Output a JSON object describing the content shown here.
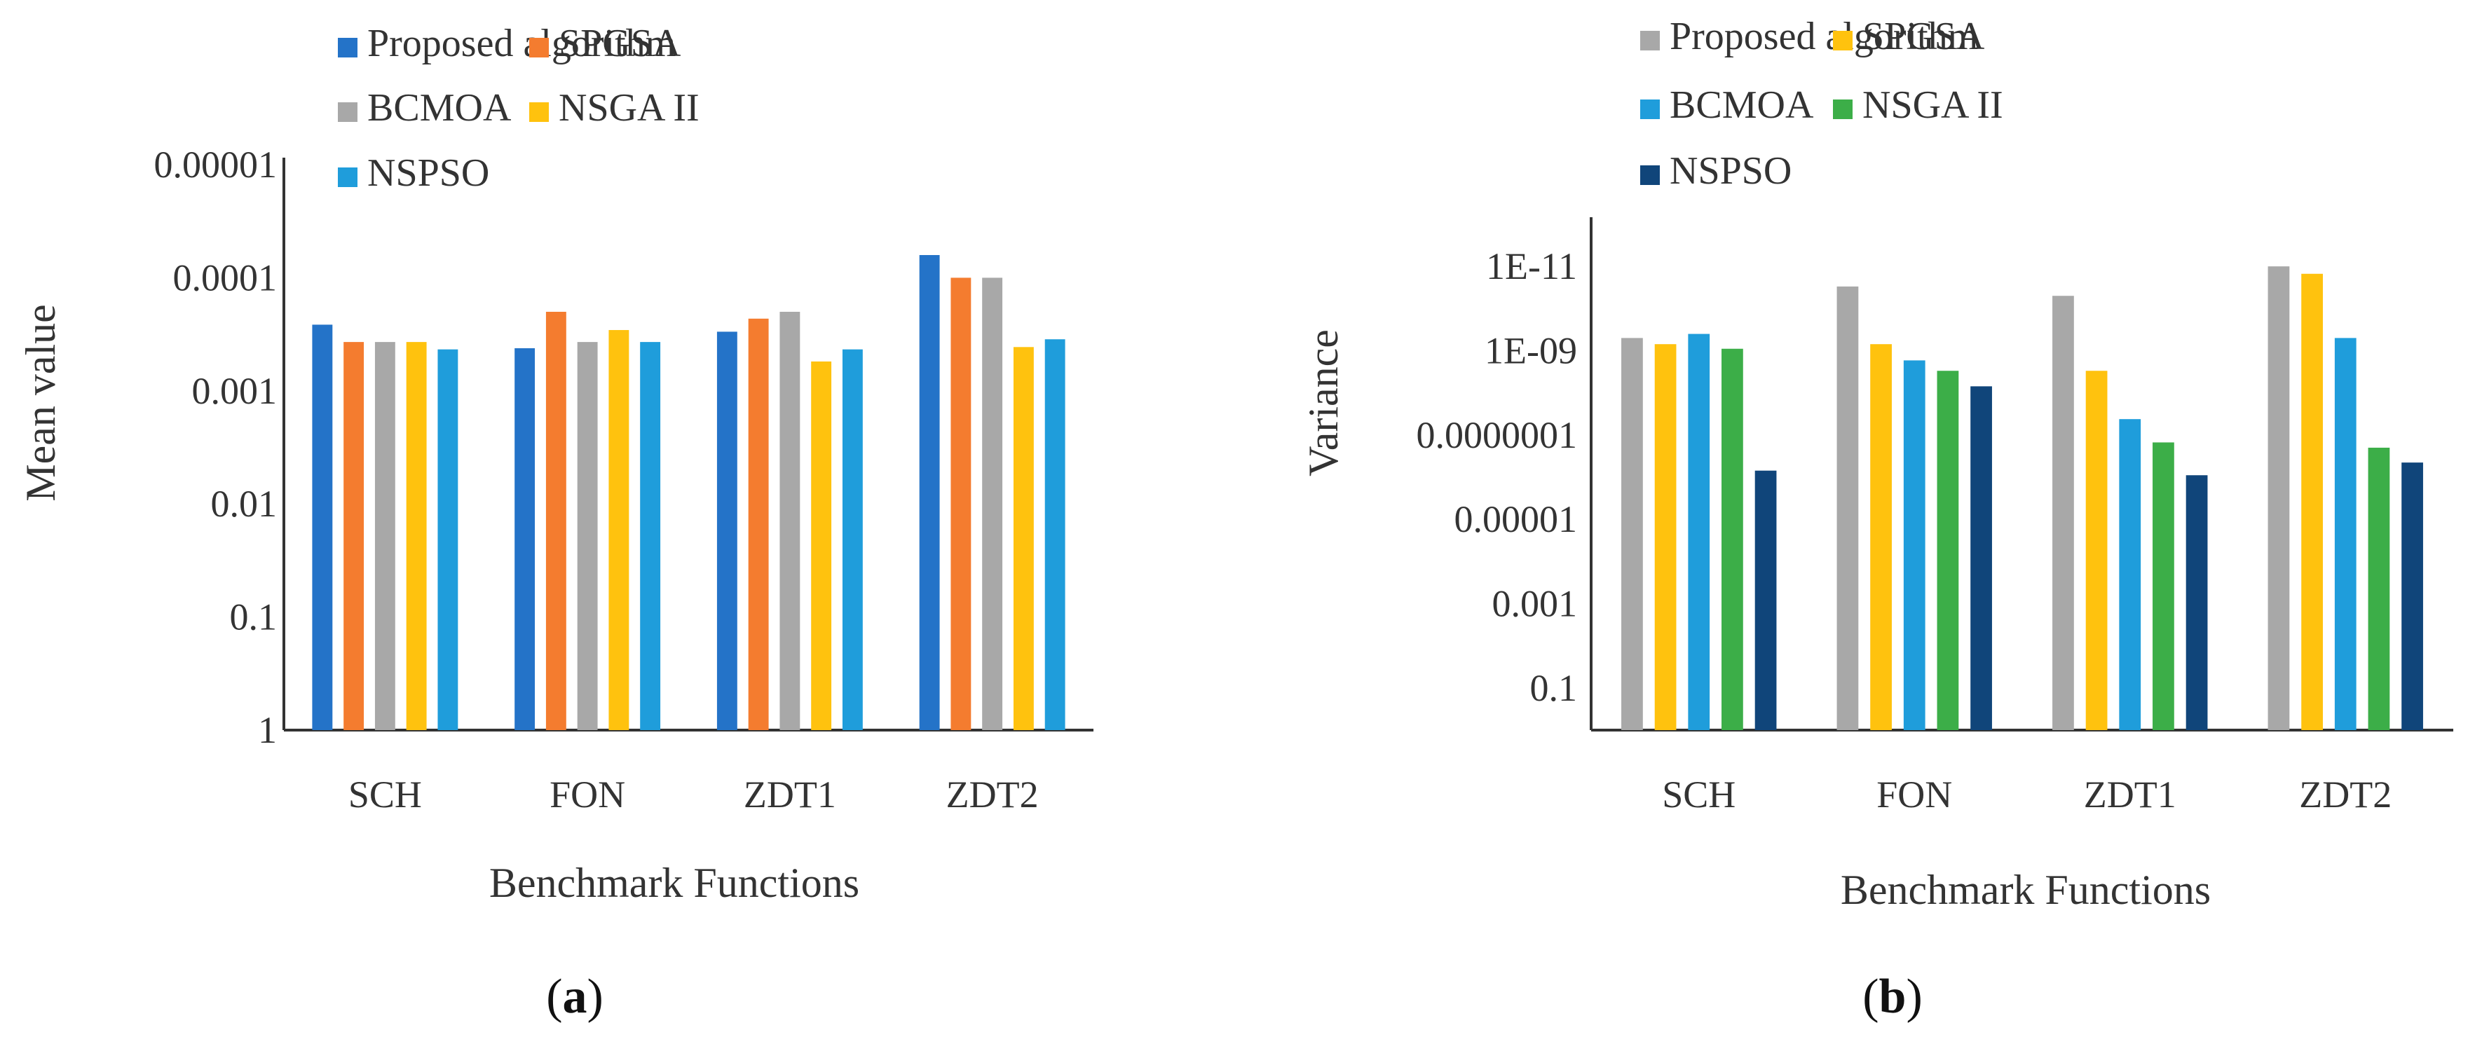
{
  "chart_data": [
    {
      "type": "bar",
      "id": "a",
      "caption": "a",
      "scale": "log",
      "y_axis_inverted": true,
      "xlabel": "Benchmark Functions",
      "ylabel": "Mean value",
      "ylim": [
        1,
        1e-05
      ],
      "yticks": [
        "1",
        "0.1",
        "0.01",
        "0.001",
        "0.0001",
        "0.00001"
      ],
      "legend": "top",
      "categories": [
        "SCH",
        "FON",
        "ZDT1",
        "ZDT2"
      ],
      "series": [
        {
          "name": "Proposed algorithm",
          "color": "#2473c8",
          "values": [
            0.00026,
            0.00042,
            0.0003,
            6.3e-05
          ]
        },
        {
          "name": "SPGSA",
          "color": "#f47c2f",
          "values": [
            0.00037,
            0.0002,
            0.00023,
            0.0001
          ]
        },
        {
          "name": "BCMOA",
          "color": "#a8a8a8",
          "values": [
            0.00037,
            0.00037,
            0.0002,
            0.0001
          ]
        },
        {
          "name": "NSGA II",
          "color": "#ffc20e",
          "values": [
            0.00037,
            0.00029,
            0.00055,
            0.00041
          ]
        },
        {
          "name": "NSPSO",
          "color": "#1f9ddb",
          "values": [
            0.00043,
            0.00037,
            0.00043,
            0.00035
          ]
        }
      ]
    },
    {
      "type": "bar",
      "id": "b",
      "caption": "b",
      "scale": "log",
      "y_axis_inverted": true,
      "xlabel": "Benchmark Functions",
      "ylabel": "Variance",
      "ylim": [
        1,
        1e-12
      ],
      "yticks": [
        "0.1",
        "0.001",
        "0.00001",
        "0.0000001",
        "1E-09",
        "1E-11"
      ],
      "legend": "top",
      "categories": [
        "SCH",
        "FON",
        "ZDT1",
        "ZDT2"
      ],
      "series": [
        {
          "name": "Proposed algorithm",
          "color": "#a8a8a8",
          "values": [
            5e-10,
            3e-11,
            5e-11,
            1e-11
          ]
        },
        {
          "name": "SPGSA",
          "color": "#ffc20e",
          "values": [
            7e-10,
            7e-10,
            3e-09,
            1.5e-11
          ]
        },
        {
          "name": "BCMOA",
          "color": "#1f9ddb",
          "values": [
            4e-10,
            1.7e-09,
            4.2e-08,
            5e-10
          ]
        },
        {
          "name": "NSGA II",
          "color": "#3cae48",
          "values": [
            9e-10,
            3e-09,
            1.5e-07,
            2e-07
          ]
        },
        {
          "name": "NSPSO",
          "color": "#10457a",
          "values": [
            7e-07,
            7e-09,
            9e-07,
            4.5e-07
          ]
        }
      ]
    }
  ]
}
